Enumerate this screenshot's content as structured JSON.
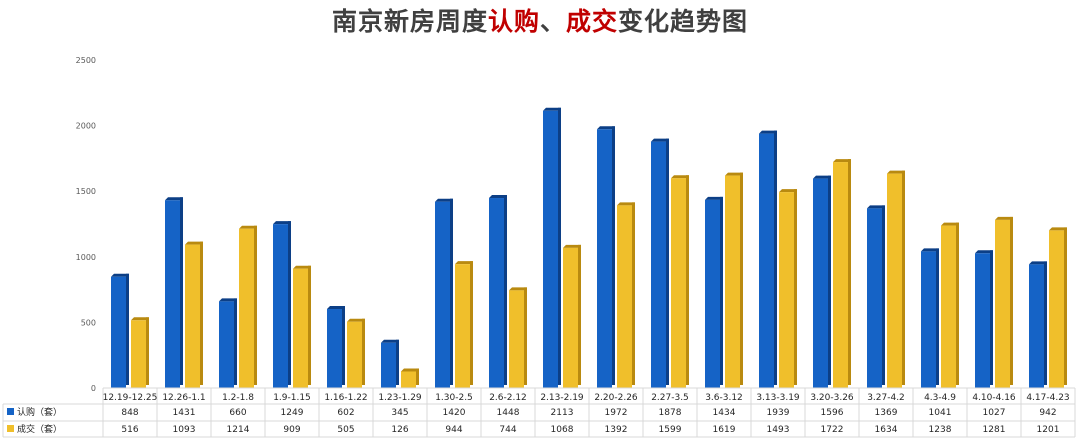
{
  "title_parts": [
    {
      "text": "南京新房周度",
      "style": "dark"
    },
    {
      "text": "认购",
      "style": "red"
    },
    {
      "text": "、",
      "style": "dark"
    },
    {
      "text": "成交",
      "style": "red"
    },
    {
      "text": "变化趋势图",
      "style": "dark"
    }
  ],
  "colors": {
    "series1": "#1563c6",
    "series1_dark": "#0c3f86",
    "series2": "#f0bf2b",
    "series2_dark": "#b98a10",
    "grid": "#d9d9d9",
    "title_dark": "#404040",
    "title_red": "#c00000"
  },
  "chart_data": {
    "type": "bar",
    "title": "南京新房周度认购、成交变化趋势图",
    "xlabel": "",
    "ylabel": "",
    "ylim": [
      0,
      2500
    ],
    "yticks": [
      0,
      500,
      1000,
      1500,
      2000,
      2500
    ],
    "grid": false,
    "legend": "data-table",
    "categories": [
      "12.19-12.25",
      "12.26-1.1",
      "1.2-1.8",
      "1.9-1.15",
      "1.16-1.22",
      "1.23-1.29",
      "1.30-2.5",
      "2.6-2.12",
      "2.13-2.19",
      "2.20-2.26",
      "2.27-3.5",
      "3.6-3.12",
      "3.13-3.19",
      "3.20-3.26",
      "3.27-4.2",
      "4.3-4.9",
      "4.10-4.16",
      "4.17-4.23"
    ],
    "series": [
      {
        "name": "认购（套）",
        "values": [
          848,
          1431,
          660,
          1249,
          602,
          345,
          1420,
          1448,
          2113,
          1972,
          1878,
          1434,
          1939,
          1596,
          1369,
          1041,
          1027,
          942
        ]
      },
      {
        "name": "成交（套）",
        "values": [
          516,
          1093,
          1214,
          909,
          505,
          126,
          944,
          744,
          1068,
          1392,
          1599,
          1619,
          1493,
          1722,
          1634,
          1238,
          1281,
          1201
        ]
      }
    ]
  }
}
